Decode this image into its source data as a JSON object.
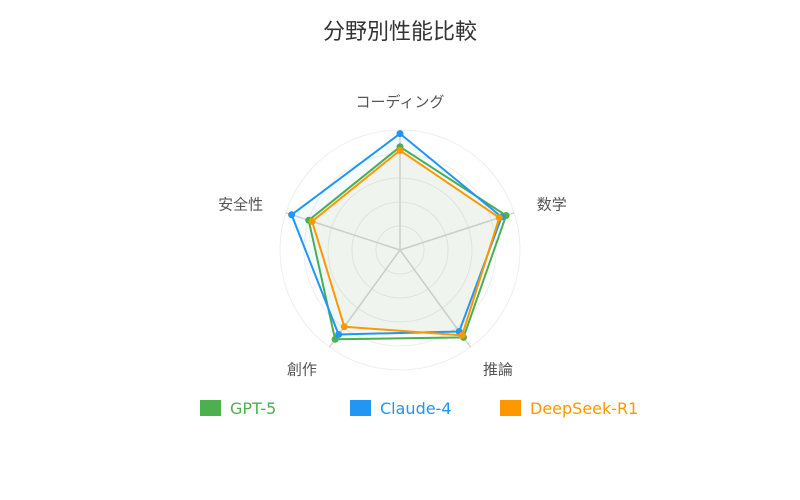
{
  "chart_data": {
    "type": "radar",
    "title": "分野別性能比較",
    "axes": [
      "コーディング",
      "数学",
      "推論",
      "創作",
      "安全性"
    ],
    "range": [
      0,
      100
    ],
    "grid": true,
    "legend_position": "bottom",
    "series": [
      {
        "name": "GPT-5",
        "color": "#4caf50",
        "values": [
          86,
          93,
          90,
          92,
          80
        ]
      },
      {
        "name": "Claude-4",
        "color": "#2196f3",
        "values": [
          97,
          89,
          84,
          87,
          95
        ]
      },
      {
        "name": "DeepSeek-R1",
        "color": "#ff9800",
        "values": [
          83,
          87,
          88,
          79,
          77
        ]
      }
    ]
  }
}
